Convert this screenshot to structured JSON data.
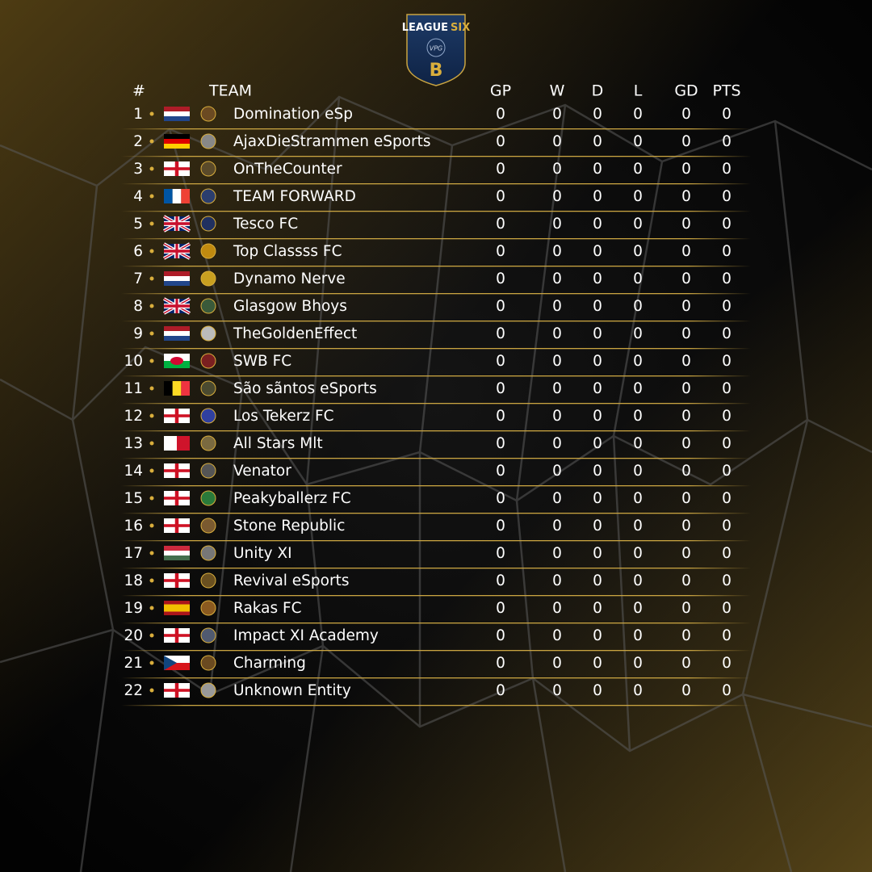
{
  "logo": {
    "line1": "LEAGUE",
    "line2": "SIX",
    "badge": "VPG",
    "letter": "B"
  },
  "table": {
    "columns": [
      "#",
      "TEAM",
      "GP",
      "W",
      "D",
      "L",
      "GD",
      "PTS"
    ],
    "rows": [
      {
        "rank": 1,
        "team": "Domination eSp",
        "stats": [
          0,
          0,
          0,
          0,
          0,
          0
        ]
      },
      {
        "rank": 2,
        "team": "AjaxDieStrammen eSports",
        "stats": [
          0,
          0,
          0,
          0,
          0,
          0
        ]
      },
      {
        "rank": 3,
        "team": "OnTheCounter",
        "stats": [
          0,
          0,
          0,
          0,
          0,
          0
        ]
      },
      {
        "rank": 4,
        "team": "TEAM FORWARD",
        "stats": [
          0,
          0,
          0,
          0,
          0,
          0
        ]
      },
      {
        "rank": 5,
        "team": "Tesco FC",
        "stats": [
          0,
          0,
          0,
          0,
          0,
          0
        ]
      },
      {
        "rank": 6,
        "team": "Top Classss FC",
        "stats": [
          0,
          0,
          0,
          0,
          0,
          0
        ]
      },
      {
        "rank": 7,
        "team": "Dynamo Nerve",
        "stats": [
          0,
          0,
          0,
          0,
          0,
          0
        ]
      },
      {
        "rank": 8,
        "team": "Glasgow Bhoys",
        "stats": [
          0,
          0,
          0,
          0,
          0,
          0
        ]
      },
      {
        "rank": 9,
        "team": "TheGoldenEffect",
        "stats": [
          0,
          0,
          0,
          0,
          0,
          0
        ]
      },
      {
        "rank": 10,
        "team": "SWB FC",
        "stats": [
          0,
          0,
          0,
          0,
          0,
          0
        ]
      },
      {
        "rank": 11,
        "team": "São sãntos eSports",
        "stats": [
          0,
          0,
          0,
          0,
          0,
          0
        ]
      },
      {
        "rank": 12,
        "team": "Los Tekerz FC",
        "stats": [
          0,
          0,
          0,
          0,
          0,
          0
        ]
      },
      {
        "rank": 13,
        "team": "All Stars Mlt",
        "stats": [
          0,
          0,
          0,
          0,
          0,
          0
        ]
      },
      {
        "rank": 14,
        "team": "Venator",
        "stats": [
          0,
          0,
          0,
          0,
          0,
          0
        ]
      },
      {
        "rank": 15,
        "team": "Peakyballerz FC",
        "stats": [
          0,
          0,
          0,
          0,
          0,
          0
        ]
      },
      {
        "rank": 16,
        "team": "Stone Republic",
        "stats": [
          0,
          0,
          0,
          0,
          0,
          0
        ]
      },
      {
        "rank": 17,
        "team": "Unity XI",
        "stats": [
          0,
          0,
          0,
          0,
          0,
          0
        ]
      },
      {
        "rank": 18,
        "team": "Revival eSports",
        "stats": [
          0,
          0,
          0,
          0,
          0,
          0
        ]
      },
      {
        "rank": 19,
        "team": "Rakas FC",
        "stats": [
          0,
          0,
          0,
          0,
          0,
          0
        ]
      },
      {
        "rank": 20,
        "team": "Impact XI Academy",
        "stats": [
          0,
          0,
          0,
          0,
          0,
          0
        ]
      },
      {
        "rank": 21,
        "team": "Charming",
        "stats": [
          0,
          0,
          0,
          0,
          0,
          0
        ]
      },
      {
        "rank": 22,
        "team": "Unknown Entity",
        "stats": [
          0,
          0,
          0,
          0,
          0,
          0
        ]
      }
    ]
  }
}
